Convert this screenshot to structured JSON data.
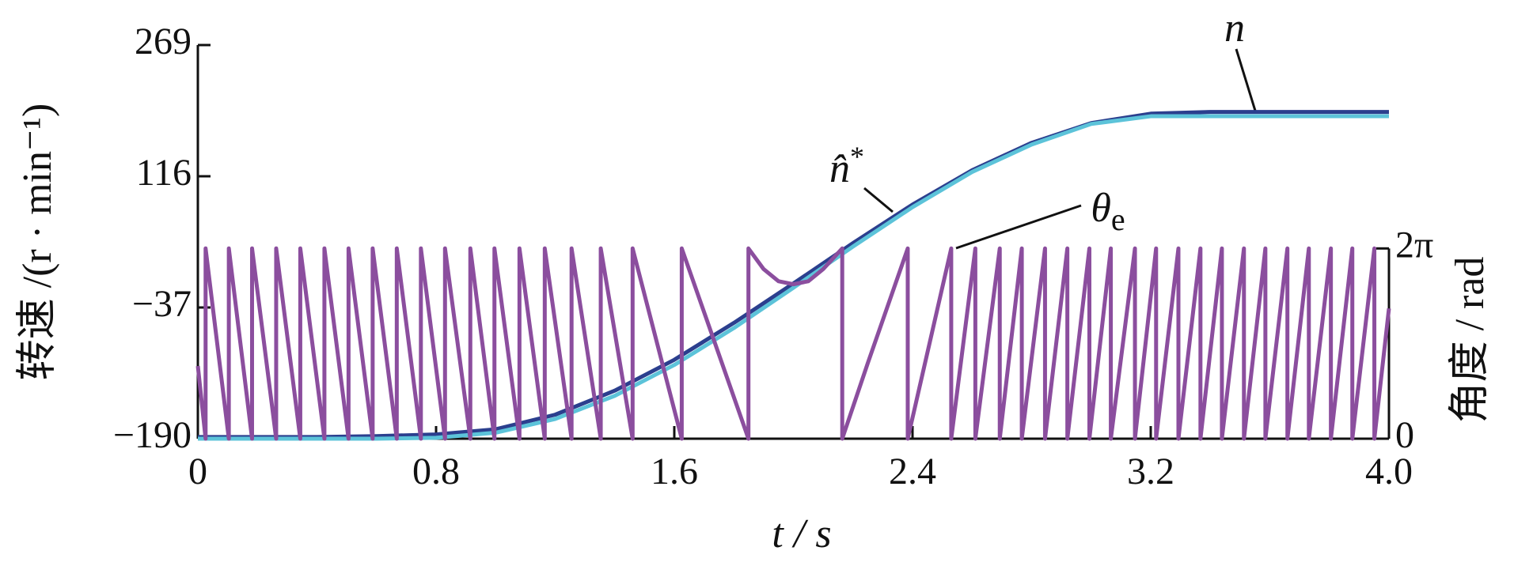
{
  "chart_data": {
    "type": "line",
    "x_label": "t / s",
    "y_label": "转速 /(r · min⁻¹)",
    "y2_label": "角度 / rad",
    "xlim": [
      0,
      4
    ],
    "xticks": [
      0,
      0.8,
      1.6,
      2.4,
      3.2,
      {
        "value": 4,
        "label": "4.0"
      }
    ],
    "ylim": [
      -190,
      269
    ],
    "yticks": [
      {
        "value": -190,
        "label": "−190"
      },
      {
        "value": -37,
        "label": "−37"
      },
      116,
      269
    ],
    "y2lim": [
      0,
      13.0
    ],
    "y2ticks": [
      0,
      {
        "value": 6.283,
        "label": "2π"
      }
    ],
    "grid": false,
    "series": [
      {
        "name": "n",
        "color": "#2b3f8e",
        "x": [
          0,
          0.2,
          0.4,
          0.6,
          0.8,
          1.0,
          1.2,
          1.4,
          1.6,
          1.8,
          2.0,
          2.2,
          2.4,
          2.6,
          2.8,
          3.0,
          3.2,
          3.4,
          3.6,
          3.8,
          4.0
        ],
        "values": [
          -188,
          -188,
          -188,
          -187,
          -185,
          -179,
          -162,
          -134,
          -98,
          -55,
          -9,
          38,
          83,
          123,
          155,
          178,
          189,
          191,
          191,
          191,
          191
        ]
      },
      {
        "name": "n̂",
        "superscript": "*",
        "color": "#5cc3d9",
        "x": [
          0,
          0.2,
          0.4,
          0.6,
          0.8,
          1.0,
          1.2,
          1.4,
          1.6,
          1.8,
          2.0,
          2.2,
          2.4,
          2.6,
          2.8,
          3.0,
          3.2,
          3.4,
          3.6,
          3.8,
          4.0
        ],
        "values": [
          -190,
          -190,
          -190,
          -190,
          -189,
          -183,
          -167,
          -140,
          -104,
          -61,
          -14,
          34,
          80,
          121,
          153,
          177,
          186,
          186,
          186,
          186,
          186
        ]
      },
      {
        "name": "θ",
        "subscript": "e",
        "color": "#8b4e9e",
        "axis": "y2",
        "x": [
          0,
          0.026,
          0.026,
          0.104,
          0.104,
          0.182,
          0.182,
          0.263,
          0.263,
          0.344,
          0.344,
          0.425,
          0.425,
          0.506,
          0.506,
          0.587,
          0.587,
          0.668,
          0.668,
          0.749,
          0.749,
          0.83,
          0.83,
          0.915,
          0.915,
          0.996,
          0.996,
          1.08,
          1.08,
          1.165,
          1.165,
          1.255,
          1.255,
          1.353,
          1.353,
          1.46,
          1.46,
          1.625,
          1.625,
          1.849,
          1.849,
          1.9,
          1.95,
          2.0,
          2.05,
          2.1,
          2.164,
          2.164,
          2.25,
          2.384,
          2.384,
          2.53,
          2.53,
          2.611,
          2.611,
          2.693,
          2.693,
          2.767,
          2.767,
          2.845,
          2.845,
          2.92,
          2.92,
          2.994,
          2.994,
          3.066,
          3.066,
          3.147,
          3.147,
          3.218,
          3.218,
          3.293,
          3.293,
          3.367,
          3.367,
          3.439,
          3.439,
          3.513,
          3.513,
          3.585,
          3.585,
          3.659,
          3.659,
          3.731,
          3.731,
          3.805,
          3.805,
          3.877,
          3.877,
          3.951,
          3.951,
          4.0
        ],
        "values": [
          2.4,
          0,
          6.283,
          0,
          6.283,
          0,
          6.283,
          0,
          6.283,
          0,
          6.283,
          0,
          6.283,
          0,
          6.283,
          0,
          6.283,
          0,
          6.283,
          0,
          6.283,
          0,
          6.283,
          0,
          6.283,
          0,
          6.283,
          0,
          6.283,
          0,
          6.283,
          0,
          6.283,
          0,
          6.283,
          0,
          6.283,
          0,
          6.283,
          0,
          6.283,
          5.6,
          5.2,
          5.1,
          5.2,
          5.6,
          6.283,
          0,
          2.5,
          6.283,
          0,
          6.283,
          0,
          6.283,
          0,
          6.283,
          0,
          6.283,
          0,
          6.283,
          0,
          6.283,
          0,
          6.283,
          0,
          6.283,
          0,
          6.283,
          0,
          6.283,
          0,
          6.283,
          0,
          6.283,
          0,
          6.283,
          0,
          6.283,
          0,
          6.283,
          0,
          6.283,
          0,
          6.283,
          0,
          6.283,
          0,
          6.283,
          0,
          6.283,
          0,
          4.3
        ]
      }
    ]
  }
}
